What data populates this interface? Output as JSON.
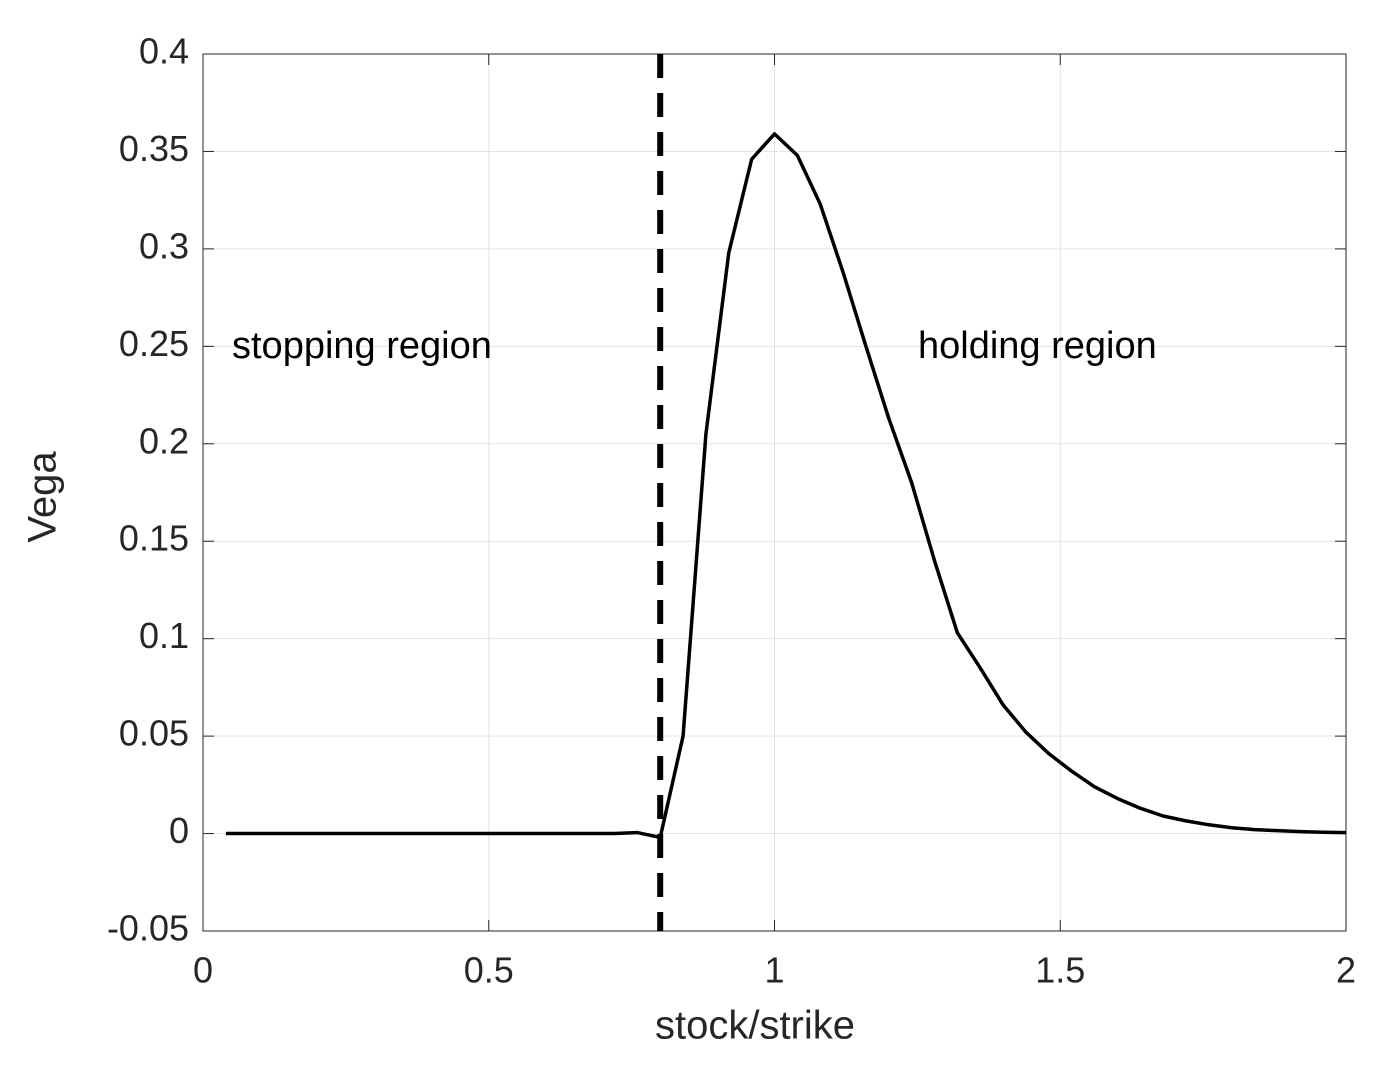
{
  "chart_data": {
    "type": "line",
    "xlabel": "stock/strike",
    "ylabel": "Vega",
    "x": [
      0.04,
      0.08,
      0.12,
      0.16,
      0.2,
      0.24,
      0.28,
      0.32,
      0.36,
      0.4,
      0.44,
      0.48,
      0.52,
      0.56,
      0.6,
      0.64,
      0.68,
      0.72,
      0.76,
      0.8,
      0.84,
      0.88,
      0.92,
      0.96,
      1,
      1.04,
      1.08,
      1.12,
      1.16,
      1.2,
      1.24,
      1.28,
      1.32,
      1.36,
      1.4,
      1.44,
      1.48,
      1.52,
      1.56,
      1.6,
      1.64,
      1.68,
      1.72,
      1.76,
      1.8,
      1.84,
      1.88,
      1.92,
      1.96,
      2
    ],
    "values": [
      0,
      0,
      0,
      0,
      0,
      0,
      0,
      0,
      0,
      0,
      0,
      0,
      0,
      0,
      0,
      0,
      0,
      0,
      0.0005,
      -0.002,
      0.05,
      0.205,
      0.298,
      0.346,
      0.359,
      0.348,
      0.323,
      0.288,
      0.25,
      0.213,
      0.18,
      0.14,
      0.103,
      0.085,
      0.066,
      0.052,
      0.041,
      0.032,
      0.024,
      0.018,
      0.013,
      0.009,
      0.0065,
      0.0045,
      0.003,
      0.002,
      0.0015,
      0.001,
      0.0007,
      0.0005
    ],
    "color": "#000000",
    "vline": 0.8,
    "annotations": [
      {
        "text": "stopping region"
      },
      {
        "text": "holding region"
      }
    ],
    "xlim": [
      0,
      2
    ],
    "xticks": [
      0,
      0.5,
      1,
      1.5,
      2
    ],
    "ylim": [
      -0.05,
      0.4
    ],
    "yticks": [
      -0.05,
      0,
      0.05,
      0.1,
      0.15,
      0.2,
      0.25,
      0.3,
      0.35,
      0.4
    ],
    "grid": true
  }
}
